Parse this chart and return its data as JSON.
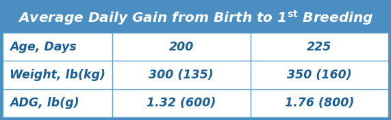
{
  "title_part1": "Average Daily Gain from Birth to 1",
  "title_super": "st",
  "title_part2": " Breeding",
  "header_bg": "#4A8EC2",
  "header_text_color": "#FFFFFF",
  "cell_text_color": "#1A5E96",
  "row_labels": [
    "Age, Days",
    "Weight, lb(kg)",
    "ADG, lb(g)"
  ],
  "col1_values": [
    "200",
    "300 (135)",
    "1.32 (600)"
  ],
  "col2_values": [
    "225",
    "350 (160)",
    "1.76 (800)"
  ],
  "grid_color": "#5B9EC9",
  "cell_bg": "#FFFFFF",
  "font_size_header": 14.5,
  "font_size_cells": 12.5,
  "fig_width": 5.71,
  "fig_height": 1.76,
  "dpi": 100
}
